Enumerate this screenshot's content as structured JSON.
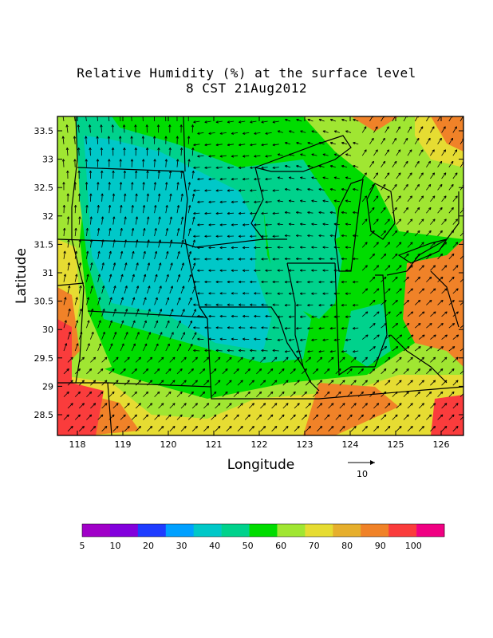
{
  "title": {
    "line1": "Relative Humidity (%) at the surface level",
    "line2": "8 CST 21Aug2012"
  },
  "axes": {
    "xlabel": "Longitude",
    "ylabel": "Latitude",
    "x_ticks": [
      "118",
      "119",
      "120",
      "121",
      "122",
      "123",
      "124",
      "125",
      "126"
    ],
    "y_ticks": [
      "33.5",
      "33",
      "32.5",
      "32",
      "31.5",
      "31",
      "30.5",
      "30",
      "29.5",
      "29",
      "28.5"
    ]
  },
  "vector_scale": {
    "label": "10"
  },
  "colorbar": {
    "labels": [
      "5",
      "10",
      "20",
      "30",
      "40",
      "50",
      "60",
      "70",
      "80",
      "90",
      "100"
    ],
    "colors": [
      "#a000c8",
      "#8200dc",
      "#1e3cff",
      "#00a0ff",
      "#00c8c8",
      "#00d28c",
      "#00dc00",
      "#a0e632",
      "#e6dc32",
      "#e6af2d",
      "#f08228",
      "#fa3c3c",
      "#f00082"
    ]
  },
  "colors": {
    "rh_30_40": "#00c8c8",
    "rh_40_50": "#00d28c",
    "rh_50_60": "#00dc00",
    "rh_60_70": "#a0e632",
    "rh_70_80": "#e6dc32",
    "rh_80_90": "#f08228",
    "rh_90_100": "#fa3c3c"
  }
}
